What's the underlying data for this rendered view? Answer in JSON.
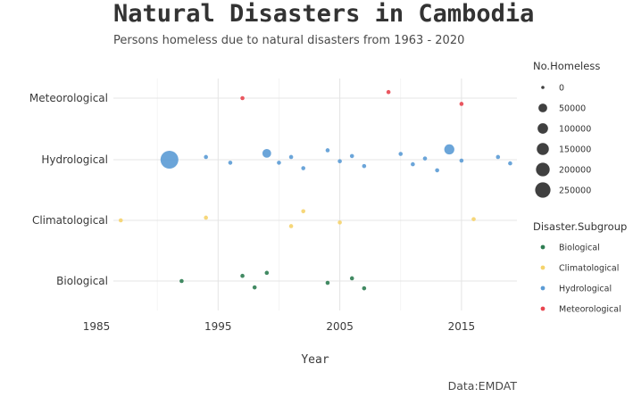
{
  "chart_data": {
    "type": "scatter",
    "title": "Natural Disasters in Cambodia",
    "subtitle": "Persons homeless due to natural disasters from 1963 - 2020",
    "caption": "Data:EMDAT",
    "xlabel": "Year",
    "ylabel": "",
    "xlim": [
      1985,
      2019.5
    ],
    "x_ticks": [
      1985,
      1995,
      2005,
      2015
    ],
    "y_categories": [
      "Biological",
      "Climatological",
      "Hydrological",
      "Meteorological"
    ],
    "grid": true,
    "size_legend": {
      "title": "No.Homeless",
      "values": [
        0,
        50000,
        100000,
        150000,
        200000,
        250000
      ],
      "labels": [
        "0",
        "50000",
        "100000",
        "150000",
        "200000",
        "250000"
      ]
    },
    "color_legend": {
      "title": "Disaster.Subgroup",
      "items": [
        {
          "label": "Biological",
          "color": "#2e7d52"
        },
        {
          "label": "Climatological",
          "color": "#f5d36b"
        },
        {
          "label": "Hydrological",
          "color": "#5b9bd5"
        },
        {
          "label": "Meteorological",
          "color": "#e8454f"
        }
      ]
    },
    "series": [
      {
        "name": "Biological",
        "points": [
          {
            "year": 1992,
            "jitter": 0.0,
            "homeless": 0
          },
          {
            "year": 1997,
            "jitter": -0.17,
            "homeless": 0
          },
          {
            "year": 1998,
            "jitter": 0.21,
            "homeless": 0
          },
          {
            "year": 1999,
            "jitter": -0.27,
            "homeless": 0
          },
          {
            "year": 2004,
            "jitter": 0.06,
            "homeless": 0
          },
          {
            "year": 2006,
            "jitter": -0.09,
            "homeless": 0
          },
          {
            "year": 2007,
            "jitter": 0.24,
            "homeless": 0
          }
        ]
      },
      {
        "name": "Climatological",
        "points": [
          {
            "year": 1987,
            "jitter": 0.0,
            "homeless": 0
          },
          {
            "year": 1994,
            "jitter": -0.09,
            "homeless": 0
          },
          {
            "year": 2001,
            "jitter": 0.19,
            "homeless": 0
          },
          {
            "year": 2002,
            "jitter": -0.3,
            "homeless": 0
          },
          {
            "year": 2005,
            "jitter": 0.07,
            "homeless": 0
          },
          {
            "year": 2016,
            "jitter": -0.04,
            "homeless": 0
          }
        ]
      },
      {
        "name": "Hydrological",
        "points": [
          {
            "year": 1991,
            "jitter": 0.0,
            "homeless": 250000
          },
          {
            "year": 1994,
            "jitter": -0.09,
            "homeless": 0
          },
          {
            "year": 1996,
            "jitter": 0.1,
            "homeless": 0
          },
          {
            "year": 1999,
            "jitter": -0.21,
            "homeless": 60000
          },
          {
            "year": 2000,
            "jitter": 0.1,
            "homeless": 0
          },
          {
            "year": 2001,
            "jitter": -0.09,
            "homeless": 0
          },
          {
            "year": 2002,
            "jitter": 0.28,
            "homeless": 0
          },
          {
            "year": 2004,
            "jitter": -0.31,
            "homeless": 0
          },
          {
            "year": 2005,
            "jitter": 0.05,
            "homeless": 0
          },
          {
            "year": 2006,
            "jitter": -0.12,
            "homeless": 0
          },
          {
            "year": 2007,
            "jitter": 0.21,
            "homeless": 0
          },
          {
            "year": 2010,
            "jitter": -0.19,
            "homeless": 0
          },
          {
            "year": 2011,
            "jitter": 0.15,
            "homeless": 0
          },
          {
            "year": 2012,
            "jitter": -0.04,
            "homeless": 0
          },
          {
            "year": 2013,
            "jitter": 0.35,
            "homeless": 0
          },
          {
            "year": 2014,
            "jitter": -0.34,
            "homeless": 80000
          },
          {
            "year": 2015,
            "jitter": 0.03,
            "homeless": 0
          },
          {
            "year": 2018,
            "jitter": -0.09,
            "homeless": 0
          },
          {
            "year": 2019,
            "jitter": 0.12,
            "homeless": 0
          }
        ]
      },
      {
        "name": "Meteorological",
        "points": [
          {
            "year": 1997,
            "jitter": 0.0,
            "homeless": 0
          },
          {
            "year": 2009,
            "jitter": -0.2,
            "homeless": 0
          },
          {
            "year": 2015,
            "jitter": 0.19,
            "homeless": 0
          }
        ]
      }
    ]
  }
}
